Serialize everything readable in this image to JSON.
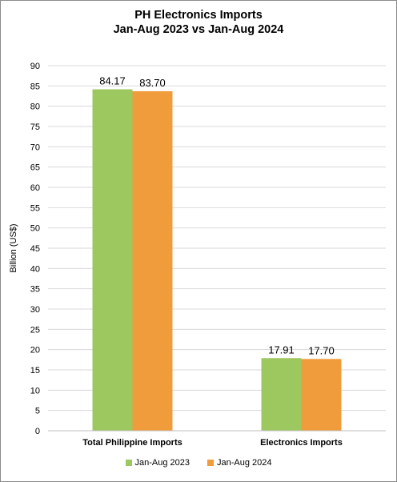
{
  "chart_data": {
    "type": "bar",
    "title_line1": "PH Electronics Imports",
    "title_line2": "Jan-Aug 2023 vs Jan-Aug 2024",
    "xlabel": "",
    "ylabel": "Billion (US$)",
    "categories": [
      "Total Philippine Imports",
      "Electronics Imports"
    ],
    "series": [
      {
        "name": "Jan-Aug 2023",
        "values": [
          84.17,
          17.91
        ],
        "labels": [
          "84.17",
          "17.91"
        ],
        "color": "#9dc85f"
      },
      {
        "name": "Jan-Aug 2024",
        "values": [
          83.7,
          17.7
        ],
        "labels": [
          "83.70",
          "17.70"
        ],
        "color": "#f09c3c"
      }
    ],
    "ylim": [
      0,
      90
    ],
    "yticks": [
      0,
      5,
      10,
      15,
      20,
      25,
      30,
      35,
      40,
      45,
      50,
      55,
      60,
      65,
      70,
      75,
      80,
      85,
      90
    ],
    "grid": true,
    "legend_position": "bottom"
  }
}
